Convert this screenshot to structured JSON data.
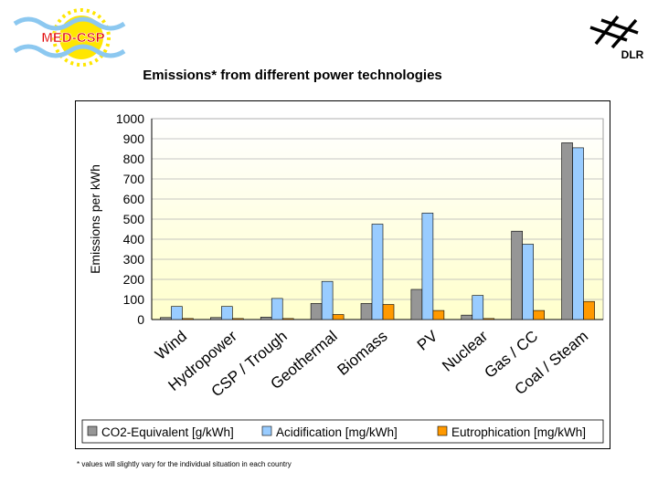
{
  "header": {
    "logo_text": "MED-CSP",
    "dlr_text": "DLR",
    "title": "Emissions* from different power technologies"
  },
  "footnote": "* values will slightly vary for the individual situation in each country",
  "colors": {
    "co2": "#969696",
    "acid": "#99ccff",
    "eutro": "#ff9900",
    "plot_bg_top": "#ffffff",
    "plot_bg_bottom": "#ffffcc"
  },
  "chart_data": {
    "type": "bar",
    "title": "",
    "xlabel": "",
    "ylabel": "Emissions per kWh",
    "ylim": [
      0,
      1000
    ],
    "yticks": [
      0,
      100,
      200,
      300,
      400,
      500,
      600,
      700,
      800,
      900,
      1000
    ],
    "grid": true,
    "legend_position": "bottom",
    "categories": [
      "Wind",
      "Hydropower",
      "CSP / Trough",
      "Geothermal",
      "Biomass",
      "PV",
      "Nuclear",
      "Gas / CC",
      "Coal / Steam"
    ],
    "series": [
      {
        "name": "CO2-Equivalent [g/kWh]",
        "values": [
          10,
          10,
          12,
          80,
          80,
          150,
          22,
          440,
          880
        ]
      },
      {
        "name": "Acidification [mg/kWh]",
        "values": [
          65,
          65,
          105,
          190,
          475,
          530,
          120,
          375,
          855
        ]
      },
      {
        "name": "Eutrophication [mg/kWh]",
        "values": [
          5,
          5,
          5,
          25,
          75,
          45,
          5,
          45,
          90
        ]
      }
    ]
  }
}
